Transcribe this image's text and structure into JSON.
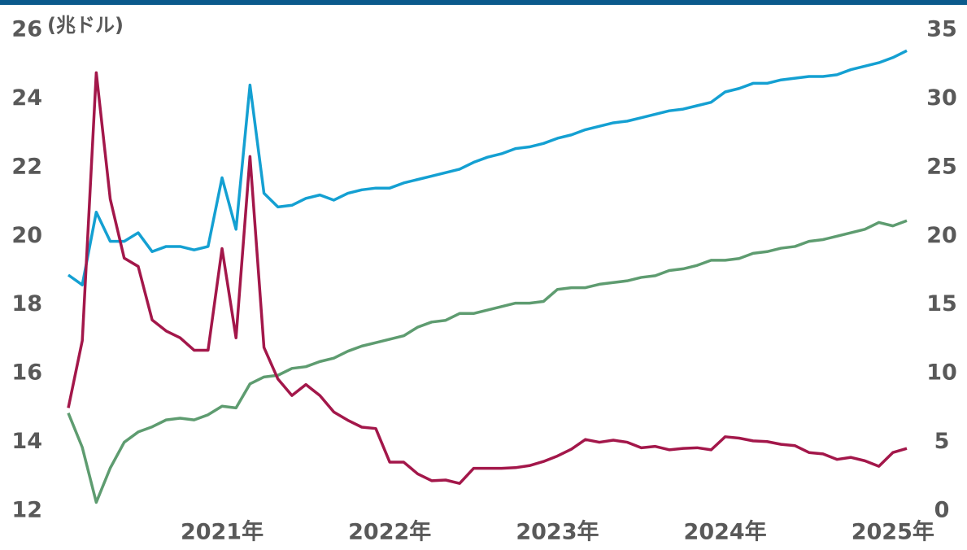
{
  "chart_data": {
    "type": "line",
    "annotation": "(兆ドル)",
    "categories": [
      null,
      null,
      null,
      null,
      null,
      null,
      null,
      null,
      null,
      null,
      null,
      "2021年",
      null,
      null,
      null,
      null,
      null,
      null,
      null,
      null,
      null,
      null,
      null,
      "2022年",
      null,
      null,
      null,
      null,
      null,
      null,
      null,
      null,
      null,
      null,
      null,
      "2023年",
      null,
      null,
      null,
      null,
      null,
      null,
      null,
      null,
      null,
      null,
      null,
      "2024年",
      null,
      null,
      null,
      null,
      null,
      null,
      null,
      null,
      null,
      null,
      null,
      "2025年",
      null
    ],
    "ylim": [
      12,
      26
    ],
    "yticks": [
      12,
      14,
      16,
      18,
      20,
      22,
      24,
      26
    ],
    "y2lim": [
      0,
      35
    ],
    "y2ticks": [
      0,
      5,
      10,
      15,
      20,
      25,
      30,
      35
    ],
    "series": [
      {
        "color": "#14a0d2",
        "values": [
          18.87,
          18.58,
          20.7,
          19.85,
          19.85,
          20.1,
          19.55,
          19.7,
          19.7,
          19.6,
          19.7,
          21.7,
          20.2,
          24.4,
          21.25,
          20.85,
          20.9,
          21.1,
          21.2,
          21.05,
          21.25,
          21.35,
          21.4,
          21.4,
          21.55,
          21.65,
          21.75,
          21.85,
          21.95,
          22.15,
          22.3,
          22.4,
          22.55,
          22.6,
          22.7,
          22.85,
          22.95,
          23.1,
          23.2,
          23.3,
          23.35,
          23.45,
          23.55,
          23.65,
          23.7,
          23.8,
          23.9,
          24.2,
          24.3,
          24.45,
          24.45,
          24.55,
          24.6,
          24.65,
          24.65,
          24.7,
          24.85,
          24.95,
          25.05,
          25.2,
          25.4
        ]
      },
      {
        "color": "#5e9c70",
        "values": [
          14.85,
          13.85,
          12.25,
          13.25,
          14.0,
          14.3,
          14.45,
          14.65,
          14.7,
          14.65,
          14.8,
          15.05,
          15.0,
          15.7,
          15.9,
          15.95,
          16.15,
          16.2,
          16.35,
          16.45,
          16.65,
          16.8,
          16.9,
          17.0,
          17.1,
          17.35,
          17.5,
          17.55,
          17.75,
          17.75,
          17.85,
          17.95,
          18.05,
          18.05,
          18.1,
          18.45,
          18.5,
          18.5,
          18.6,
          18.65,
          18.7,
          18.8,
          18.85,
          19.0,
          19.05,
          19.15,
          19.3,
          19.3,
          19.35,
          19.5,
          19.55,
          19.65,
          19.7,
          19.85,
          19.9,
          20.0,
          20.1,
          20.2,
          20.4,
          20.3,
          20.45
        ]
      },
      {
        "color": "#a3174a",
        "axis": "y2",
        "values": [
          7.5,
          12.4,
          31.9,
          22.7,
          18.4,
          17.8,
          13.9,
          13.1,
          12.6,
          11.7,
          11.7,
          19.1,
          12.6,
          25.8,
          11.9,
          9.6,
          8.4,
          9.2,
          8.4,
          7.2,
          6.6,
          6.1,
          6.0,
          3.55,
          3.55,
          2.7,
          2.2,
          2.25,
          2.0,
          3.1,
          3.1,
          3.1,
          3.15,
          3.3,
          3.6,
          4.0,
          4.5,
          5.2,
          5.0,
          5.15,
          5.0,
          4.6,
          4.7,
          4.45,
          4.55,
          4.6,
          4.45,
          5.4,
          5.3,
          5.1,
          5.05,
          4.85,
          4.75,
          4.25,
          4.15,
          3.75,
          3.9,
          3.65,
          3.25,
          4.25,
          4.55
        ]
      }
    ]
  }
}
